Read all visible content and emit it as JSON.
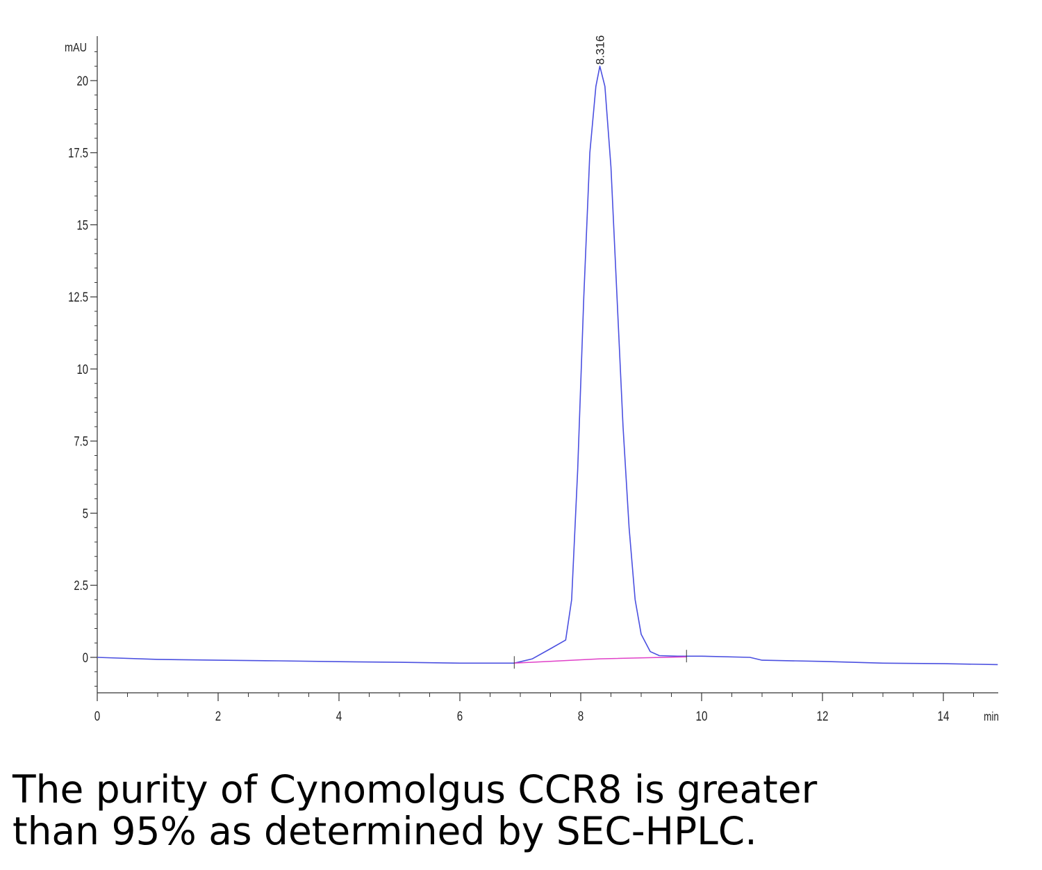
{
  "chart_data": {
    "type": "line",
    "title": "",
    "xlabel": "min",
    "ylabel": "mAU",
    "xlim": [
      0,
      14.9
    ],
    "ylim": [
      -1.25,
      21.5
    ],
    "x_ticks": [
      0,
      2,
      4,
      6,
      8,
      10,
      12,
      14
    ],
    "y_ticks": [
      0,
      2.5,
      5,
      7.5,
      10,
      12.5,
      15,
      17.5,
      20
    ],
    "y_tick_labels": [
      "0",
      "2.5",
      "5",
      "7.5",
      "10",
      "12.5",
      "15",
      "17.5",
      "20"
    ],
    "grid": false,
    "series": [
      {
        "color": "#4a4fe0",
        "x": [
          0,
          1,
          2,
          3,
          4,
          5,
          6,
          6.9,
          7.2,
          7.5,
          7.75,
          7.85,
          7.95,
          8.05,
          8.15,
          8.25,
          8.316,
          8.4,
          8.5,
          8.6,
          8.7,
          8.8,
          8.9,
          9.0,
          9.15,
          9.3,
          9.6,
          10,
          10.8,
          11,
          12,
          13,
          14,
          14.9
        ],
        "y": [
          0,
          -0.07,
          -0.1,
          -0.12,
          -0.15,
          -0.17,
          -0.2,
          -0.2,
          -0.05,
          0.3,
          0.6,
          2.0,
          6.5,
          12.5,
          17.5,
          19.8,
          20.5,
          19.8,
          17.0,
          12.5,
          8.0,
          4.5,
          2.0,
          0.8,
          0.2,
          0.06,
          0.04,
          0.04,
          0.0,
          -0.1,
          -0.14,
          -0.2,
          -0.22,
          -0.25
        ]
      },
      {
        "color": "#e040c8",
        "x": [
          6.9,
          8.316,
          9.75
        ],
        "y": [
          -0.2,
          -0.05,
          0.02
        ]
      }
    ],
    "annotations": [
      {
        "text": "8.316",
        "x": 8.316,
        "y": 20.5
      }
    ],
    "baseline_markers": [
      6.9,
      9.75
    ]
  },
  "caption": {
    "line1": "The purity of Cynomolgus CCR8 is greater",
    "line2": "than 95% as determined by SEC-HPLC."
  }
}
